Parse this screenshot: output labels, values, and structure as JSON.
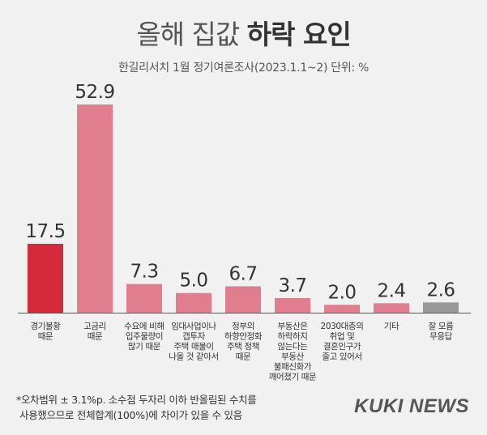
{
  "header": {
    "title_light": "올해 집값",
    "title_bold": "하락 요인",
    "subtitle": "한길리서치 1월 정기여론조사(2023.1.1~2) 단위: %"
  },
  "chart_data": {
    "type": "bar",
    "title": "올해 집값 하락 요인",
    "subtitle": "한길리서치 1월 정기여론조사(2023.1.1~2) 단위: %",
    "unit": "%",
    "categories": [
      [
        "경기불황",
        "때문"
      ],
      [
        "고금리",
        "때문"
      ],
      [
        "수요에 비해",
        "입주물량이",
        "많기 때문"
      ],
      [
        "임대사업이나",
        "갭투자",
        "주택 매물이",
        "나올 것 같아서"
      ],
      [
        "정부의",
        "하향안정화",
        "주택 정책",
        "때문"
      ],
      [
        "부동산은",
        "하락하지",
        "않는다는",
        "부동산",
        "불패신화가",
        "깨어졌기 때문"
      ],
      [
        "2030대층의",
        "취업 및",
        "결혼인구가",
        "줄고 있어서"
      ],
      [
        "기타"
      ],
      [
        "잘 모름",
        "무응답"
      ]
    ],
    "values": [
      17.5,
      52.9,
      7.3,
      5.0,
      6.7,
      3.7,
      2.0,
      2.4,
      2.6
    ],
    "value_labels": [
      "17.5",
      "52.9",
      "7.3",
      "5.0",
      "6.7",
      "3.7",
      "2.0",
      "2.4",
      "2.6"
    ],
    "bar_colors": [
      "#d42a3c",
      "#e07e8d",
      "#e07e8d",
      "#e07e8d",
      "#e07e8d",
      "#e07e8d",
      "#e07e8d",
      "#e07e8d",
      "#999999"
    ],
    "ylim": [
      0,
      52.9
    ],
    "grid": false,
    "legend": "none"
  },
  "footnote": {
    "line1": "*오차범위 ± 3.1%p. 소수점 두자리 이하 반올림된 수치를",
    "line2": "사용했으므로 전체합계(100%)에 차이가 있을 수 있음"
  },
  "brand": {
    "logo": "KUKI NEWS"
  },
  "colors": {
    "background": "#f1f1f1",
    "highlight_bar": "#d42a3c",
    "bar": "#e07e8d",
    "neutral_bar": "#999999",
    "axis": "#555555"
  }
}
